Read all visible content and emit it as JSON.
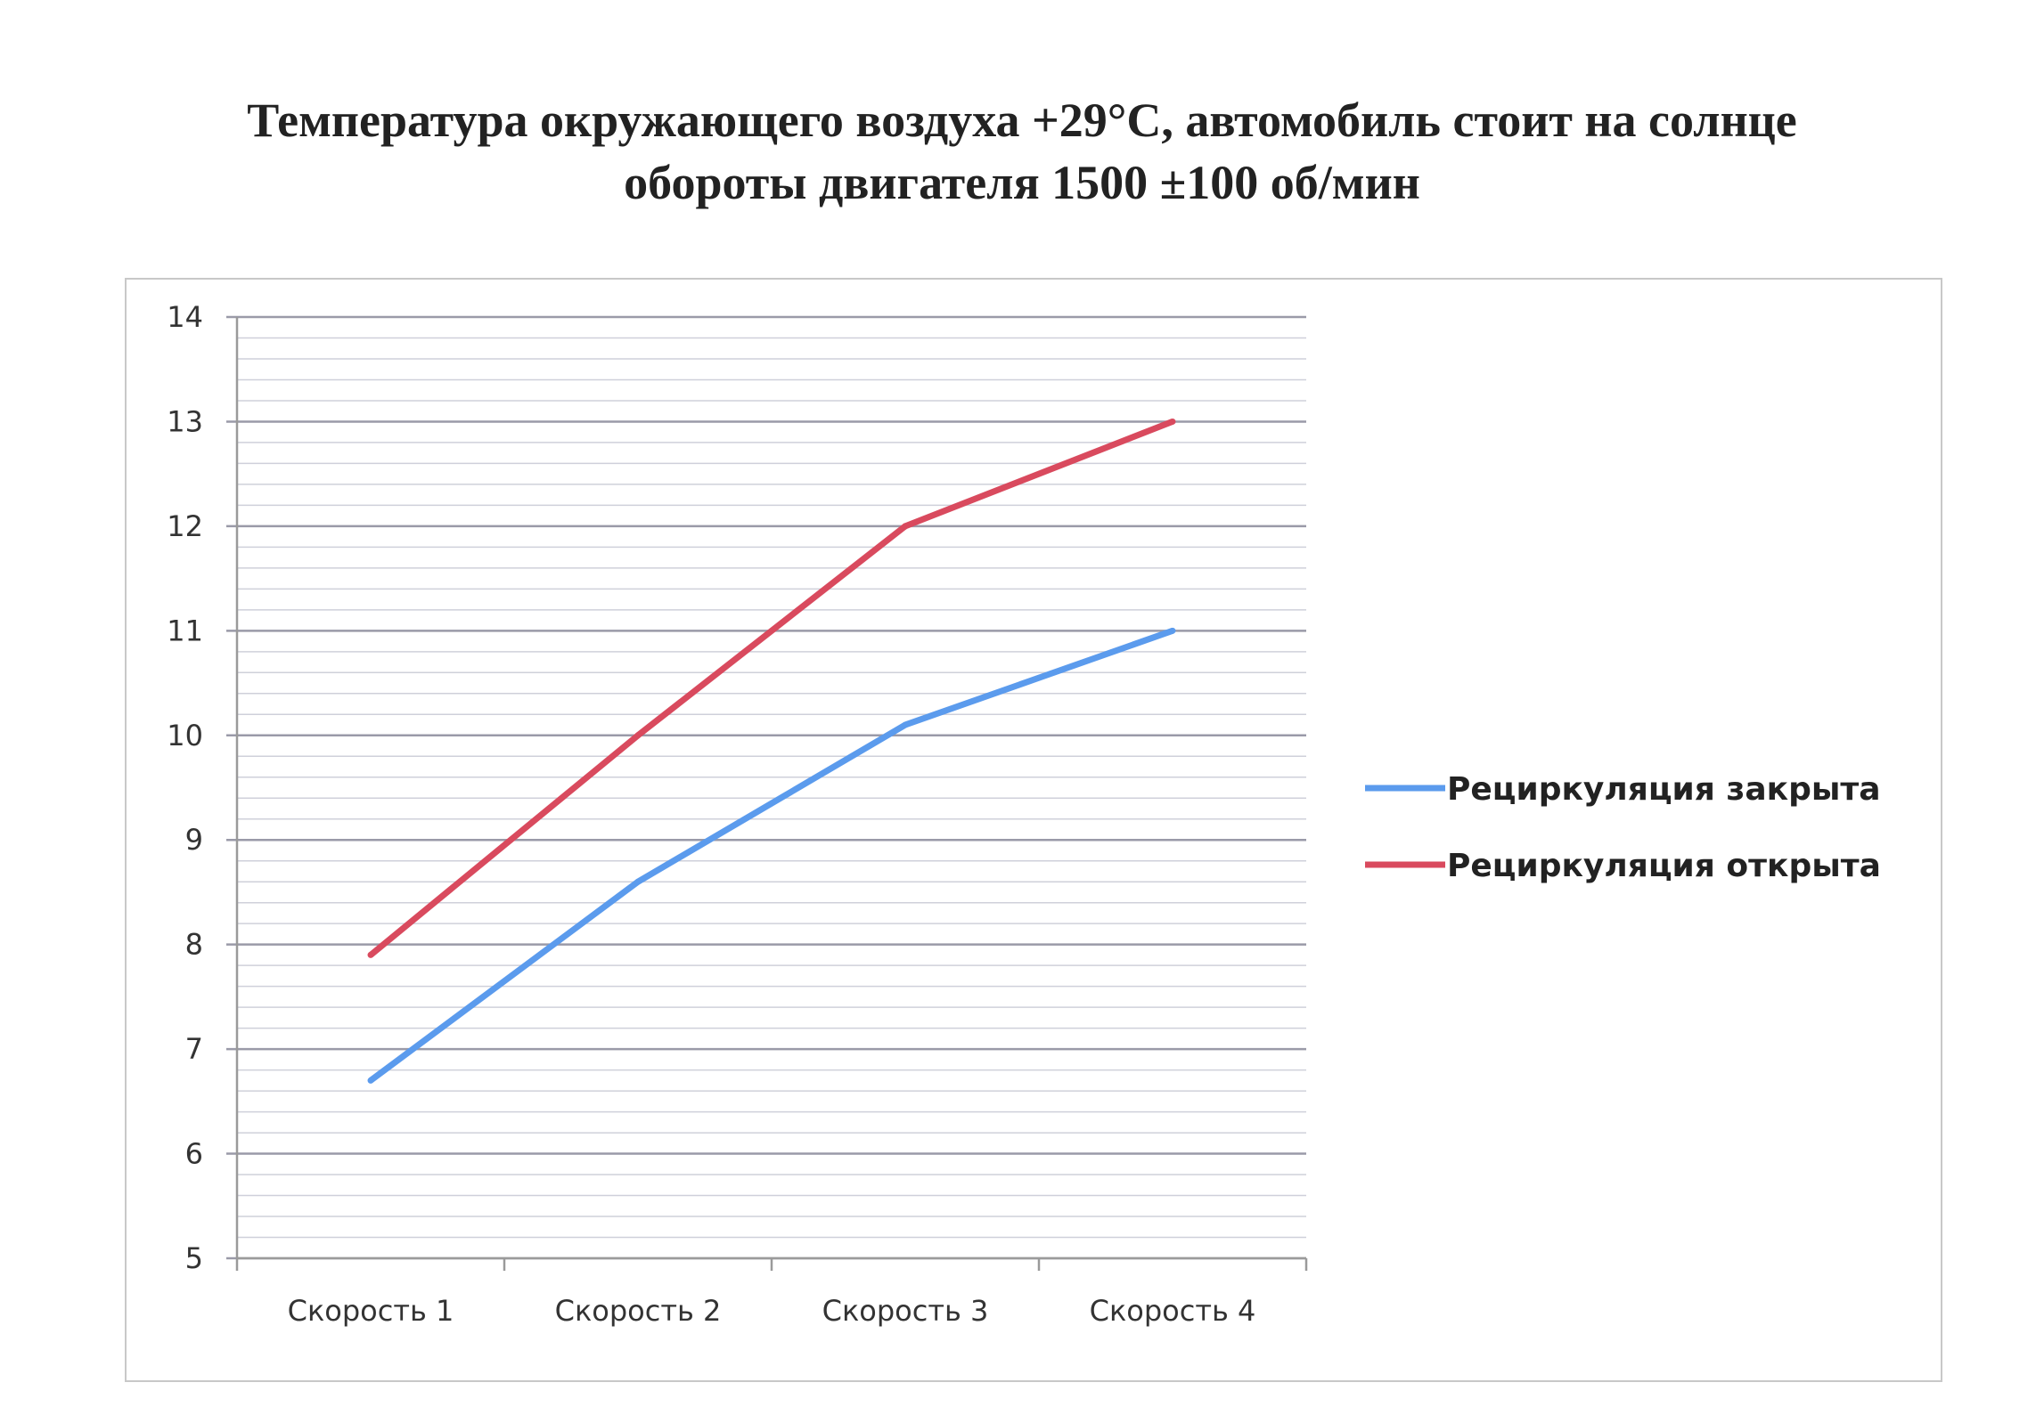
{
  "page": {
    "title_lines": [
      "Температура окружающего воздуха +29°C, автомобиль стоит на солнце",
      "обороты двигателя 1500 ±100 об/мин"
    ]
  },
  "chart_data": {
    "type": "line",
    "title": "Температура окружающего воздуха +29°C, автомобиль стоит на солнце обороты двигателя 1500 ±100 об/мин",
    "categories": [
      "Скорость 1",
      "Скорость 2",
      "Скорость 3",
      "Скорость 4"
    ],
    "series": [
      {
        "name": "Рециркуляция закрыта",
        "values": [
          6.7,
          8.6,
          10.1,
          11.0
        ],
        "color": "#5b9bed"
      },
      {
        "name": "Рециркуляция открыта",
        "values": [
          7.9,
          10.0,
          12.0,
          13.0
        ],
        "color": "#d94a5e"
      }
    ],
    "ylim": [
      5,
      14
    ],
    "yticks": [
      5,
      6,
      7,
      8,
      9,
      10,
      11,
      12,
      13,
      14
    ],
    "minor_gridlines_per_major": 5,
    "grid": true,
    "legend": "right",
    "xlabel": "",
    "ylabel": "",
    "colors": {
      "major_grid": "#9a9aa8",
      "minor_grid": "#cfd0da",
      "axis": "#9a9a9a",
      "frame": "#c8c8c8"
    }
  }
}
